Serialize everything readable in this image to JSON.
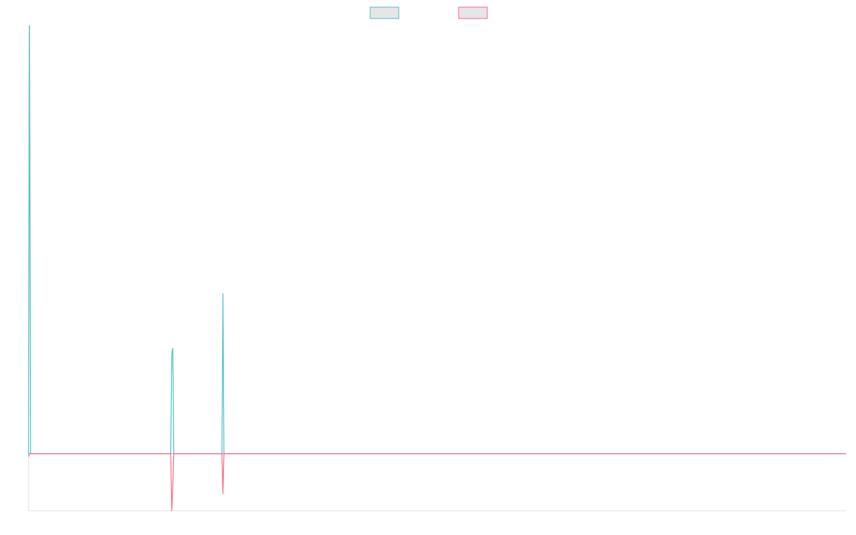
{
  "chart_data": {
    "type": "line",
    "title": "",
    "xlabel": "",
    "ylabel": "",
    "grid": false,
    "legend_position": "top-center",
    "x_count": 800,
    "ylim": [
      -1,
      7.5
    ],
    "series": [
      {
        "color": "#4bc0c0",
        "points": [
          [
            0,
            0
          ],
          [
            1,
            7.5
          ],
          [
            2,
            0
          ],
          [
            139,
            0
          ],
          [
            140,
            1.75
          ],
          [
            141,
            1.85
          ],
          [
            142,
            0
          ],
          [
            189,
            0
          ],
          [
            190,
            2.8
          ],
          [
            191,
            0
          ],
          [
            799,
            0
          ]
        ]
      },
      {
        "color": "#ff6384",
        "points": [
          [
            0,
            -0.05
          ],
          [
            1,
            0
          ],
          [
            139,
            0
          ],
          [
            140,
            -1.0
          ],
          [
            141,
            -0.55
          ],
          [
            142,
            0
          ],
          [
            189,
            0
          ],
          [
            190,
            -0.7
          ],
          [
            191,
            0
          ],
          [
            799,
            0
          ]
        ]
      }
    ]
  }
}
